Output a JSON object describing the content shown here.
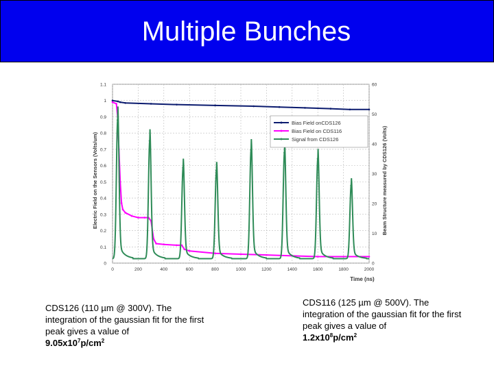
{
  "title": "Multiple Bunches",
  "captions": {
    "left": {
      "text": "CDS126 (110 µm @ 300V). The integration of the gaussian fit for the first peak gives a value of",
      "value_base": "9.05x10",
      "value_exp": "7",
      "value_unit": "p/cm",
      "value_unit_exp": "2"
    },
    "right": {
      "text": "CDS116 (125 µm @ 500V). The integration of the gaussian fit for the first peak gives a value of",
      "value_base": "1.2x10",
      "value_exp": "8",
      "value_unit": "p/cm",
      "value_unit_exp": "2"
    }
  },
  "colors": {
    "title_bg": "#0000ee",
    "bias_cds126": "#0a1a6e",
    "bias_cds116": "#ff00ff",
    "signal_cds126": "#2e8b57"
  },
  "chart_data": {
    "type": "line",
    "xlabel": "Time (ns)",
    "ylabel": "Electric Field on the Sensors (Volts/um)",
    "y2label": "Beam Structure measured by CDS126 (Volts)",
    "xlim": [
      0,
      2000
    ],
    "ylim": [
      0,
      1.1
    ],
    "y2lim": [
      0,
      60
    ],
    "xticks": [
      "0",
      "200",
      "400",
      "600",
      "800",
      "1000",
      "1200",
      "1400",
      "1600",
      "1800",
      "2000"
    ],
    "yticks": [
      "0",
      "0.1",
      "0.2",
      "0.3",
      "0.4",
      "0.5",
      "0.6",
      "0.7",
      "0.8",
      "0.9",
      "1",
      "1.1"
    ],
    "y2ticks": [
      "0",
      "10",
      "20",
      "30",
      "40",
      "50",
      "60"
    ],
    "grid": true,
    "legend_position": "top-right",
    "series": [
      {
        "name": "Bias Field onCDS126",
        "axis": "left",
        "x": [
          0,
          40,
          60,
          100,
          300,
          500,
          800,
          1100,
          1300,
          1500,
          1700,
          1850,
          2000
        ],
        "y": [
          1.0,
          0.995,
          0.99,
          0.985,
          0.98,
          0.975,
          0.97,
          0.965,
          0.96,
          0.955,
          0.95,
          0.945,
          0.945
        ]
      },
      {
        "name": "Bias Field on CDS116",
        "axis": "left",
        "x": [
          0,
          30,
          40,
          50,
          60,
          70,
          80,
          100,
          150,
          200,
          250,
          280,
          300,
          320,
          340,
          400,
          500,
          540,
          560,
          600,
          800,
          1000,
          1200,
          1400,
          1600,
          1800,
          2000
        ],
        "y": [
          0.99,
          0.98,
          0.9,
          0.7,
          0.5,
          0.37,
          0.33,
          0.31,
          0.29,
          0.28,
          0.28,
          0.28,
          0.26,
          0.15,
          0.12,
          0.115,
          0.11,
          0.11,
          0.085,
          0.075,
          0.06,
          0.055,
          0.05,
          0.045,
          0.04,
          0.04,
          0.04
        ]
      },
      {
        "name": "Signal from CDS126",
        "axis": "right",
        "baseline": 1.5,
        "peaks": [
          {
            "x": 40,
            "y": 48
          },
          {
            "x": 290,
            "y": 41
          },
          {
            "x": 550,
            "y": 32
          },
          {
            "x": 810,
            "y": 31
          },
          {
            "x": 1080,
            "y": 38
          },
          {
            "x": 1340,
            "y": 37
          },
          {
            "x": 1600,
            "y": 35
          },
          {
            "x": 1860,
            "y": 26
          }
        ],
        "peak_width_ns": 10
      }
    ]
  }
}
